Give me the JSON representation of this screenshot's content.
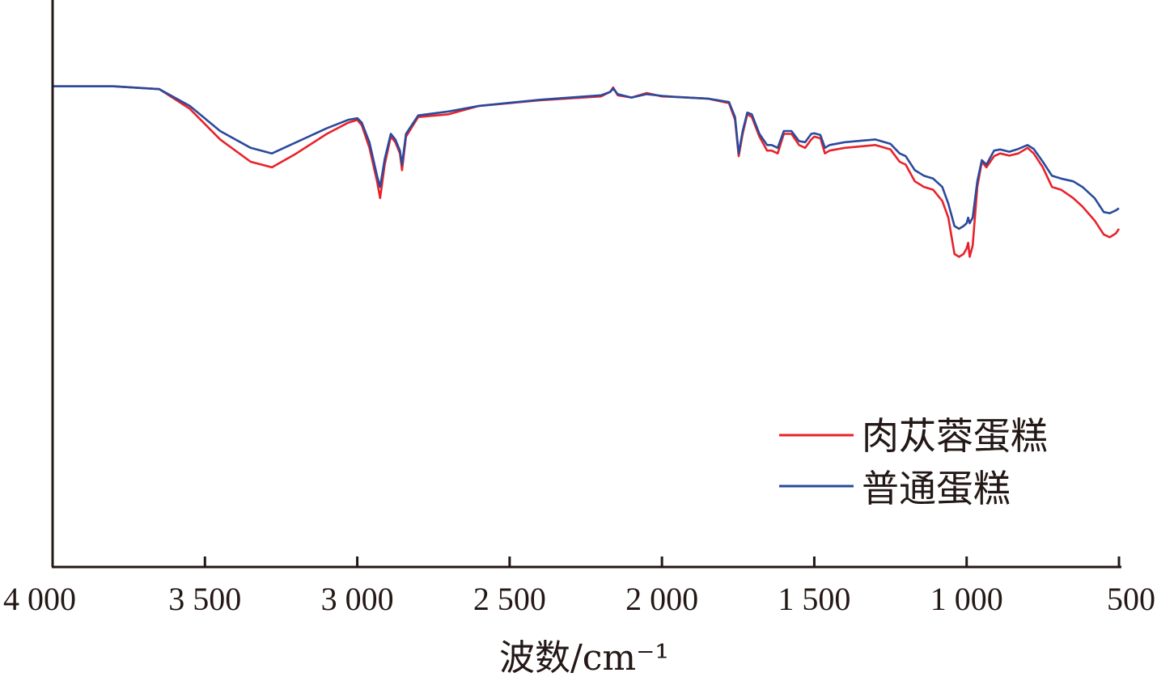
{
  "chart_data": {
    "type": "line",
    "xlabel": "波数/cm⁻¹",
    "ylabel": "",
    "xlim": [
      4000,
      500
    ],
    "ylim": [
      0,
      100
    ],
    "x_reversed": true,
    "y_ticks_shown": false,
    "grid": false,
    "legend_position": "bottom-right",
    "x_ticks": [
      {
        "value": 4000,
        "label": "4 000"
      },
      {
        "value": 3500,
        "label": "3 500"
      },
      {
        "value": 3000,
        "label": "3 000"
      },
      {
        "value": 2500,
        "label": "2 500"
      },
      {
        "value": 2000,
        "label": "2 000"
      },
      {
        "value": 1500,
        "label": "1 500"
      },
      {
        "value": 1000,
        "label": "1 000"
      },
      {
        "value": 500,
        "label": "500"
      }
    ],
    "series": [
      {
        "name": "肉苁蓉蛋糕",
        "color": "#e8222a",
        "points": [
          [
            4000,
            86
          ],
          [
            3800,
            86
          ],
          [
            3650,
            85.5
          ],
          [
            3550,
            82
          ],
          [
            3450,
            76.5
          ],
          [
            3350,
            72.5
          ],
          [
            3280,
            71.5
          ],
          [
            3200,
            74
          ],
          [
            3100,
            77.5
          ],
          [
            3030,
            79.5
          ],
          [
            3000,
            80
          ],
          [
            2985,
            79
          ],
          [
            2960,
            75
          ],
          [
            2935,
            69
          ],
          [
            2925,
            66
          ],
          [
            2910,
            72
          ],
          [
            2890,
            77
          ],
          [
            2875,
            76
          ],
          [
            2860,
            74
          ],
          [
            2853,
            71
          ],
          [
            2840,
            77
          ],
          [
            2800,
            80.5
          ],
          [
            2700,
            81
          ],
          [
            2600,
            82.5
          ],
          [
            2400,
            83.5
          ],
          [
            2200,
            84.2
          ],
          [
            2170,
            85
          ],
          [
            2160,
            85.8
          ],
          [
            2145,
            84.4
          ],
          [
            2100,
            84
          ],
          [
            2050,
            84.8
          ],
          [
            2000,
            84.2
          ],
          [
            1950,
            84.1
          ],
          [
            1850,
            83.8
          ],
          [
            1780,
            83
          ],
          [
            1760,
            80
          ],
          [
            1748,
            73.5
          ],
          [
            1735,
            77.5
          ],
          [
            1720,
            81
          ],
          [
            1705,
            80.5
          ],
          [
            1680,
            77
          ],
          [
            1655,
            74.5
          ],
          [
            1640,
            74.5
          ],
          [
            1620,
            74
          ],
          [
            1600,
            77.5
          ],
          [
            1575,
            77.5
          ],
          [
            1550,
            75.5
          ],
          [
            1530,
            75
          ],
          [
            1510,
            76.5
          ],
          [
            1500,
            77
          ],
          [
            1480,
            76.7
          ],
          [
            1465,
            74
          ],
          [
            1450,
            74.5
          ],
          [
            1400,
            75
          ],
          [
            1300,
            75.5
          ],
          [
            1250,
            74.7
          ],
          [
            1220,
            72.5
          ],
          [
            1200,
            72
          ],
          [
            1170,
            69
          ],
          [
            1140,
            68
          ],
          [
            1110,
            67.5
          ],
          [
            1080,
            65.5
          ],
          [
            1060,
            62.5
          ],
          [
            1040,
            56
          ],
          [
            1025,
            55.5
          ],
          [
            1010,
            56
          ],
          [
            1000,
            57
          ],
          [
            995,
            58
          ],
          [
            990,
            55.5
          ],
          [
            980,
            57.5
          ],
          [
            965,
            68
          ],
          [
            950,
            72.5
          ],
          [
            935,
            71.5
          ],
          [
            910,
            73.5
          ],
          [
            890,
            74
          ],
          [
            860,
            73.6
          ],
          [
            830,
            74
          ],
          [
            800,
            75
          ],
          [
            780,
            74
          ],
          [
            750,
            71.5
          ],
          [
            720,
            68
          ],
          [
            690,
            67.5
          ],
          [
            650,
            66
          ],
          [
            620,
            64.5
          ],
          [
            580,
            62
          ],
          [
            550,
            59.5
          ],
          [
            530,
            59
          ],
          [
            510,
            59.7
          ],
          [
            500,
            60.5
          ]
        ]
      },
      {
        "name": "普通蛋糕",
        "color": "#2a4a9c",
        "points": [
          [
            4000,
            86
          ],
          [
            3800,
            86
          ],
          [
            3650,
            85.5
          ],
          [
            3550,
            82.5
          ],
          [
            3450,
            78
          ],
          [
            3350,
            75
          ],
          [
            3280,
            74
          ],
          [
            3200,
            76
          ],
          [
            3100,
            78.5
          ],
          [
            3030,
            80
          ],
          [
            3000,
            80.3
          ],
          [
            2985,
            79.5
          ],
          [
            2960,
            76
          ],
          [
            2935,
            70
          ],
          [
            2925,
            68
          ],
          [
            2910,
            73
          ],
          [
            2890,
            77.5
          ],
          [
            2875,
            76.5
          ],
          [
            2860,
            74.5
          ],
          [
            2853,
            72
          ],
          [
            2840,
            77.5
          ],
          [
            2800,
            80.8
          ],
          [
            2700,
            81.5
          ],
          [
            2600,
            82.5
          ],
          [
            2400,
            83.6
          ],
          [
            2200,
            84.4
          ],
          [
            2170,
            85
          ],
          [
            2160,
            85.6
          ],
          [
            2145,
            84.6
          ],
          [
            2100,
            84
          ],
          [
            2050,
            84.6
          ],
          [
            2000,
            84.3
          ],
          [
            1950,
            84.1
          ],
          [
            1850,
            83.8
          ],
          [
            1780,
            83.2
          ],
          [
            1760,
            80.5
          ],
          [
            1748,
            74
          ],
          [
            1735,
            78
          ],
          [
            1720,
            81.3
          ],
          [
            1705,
            81
          ],
          [
            1680,
            77.5
          ],
          [
            1655,
            75.5
          ],
          [
            1640,
            75.5
          ],
          [
            1620,
            75
          ],
          [
            1600,
            78
          ],
          [
            1575,
            78
          ],
          [
            1550,
            76.2
          ],
          [
            1530,
            76
          ],
          [
            1510,
            77.5
          ],
          [
            1500,
            77.6
          ],
          [
            1480,
            77.3
          ],
          [
            1465,
            75
          ],
          [
            1450,
            75.5
          ],
          [
            1400,
            76
          ],
          [
            1300,
            76.5
          ],
          [
            1250,
            75.7
          ],
          [
            1220,
            74
          ],
          [
            1200,
            73.5
          ],
          [
            1170,
            71
          ],
          [
            1140,
            70
          ],
          [
            1110,
            69.5
          ],
          [
            1080,
            68
          ],
          [
            1060,
            65
          ],
          [
            1040,
            61
          ],
          [
            1025,
            60.5
          ],
          [
            1010,
            61
          ],
          [
            1000,
            61.5
          ],
          [
            995,
            62.5
          ],
          [
            990,
            61.5
          ],
          [
            980,
            62.5
          ],
          [
            965,
            69
          ],
          [
            950,
            72.8
          ],
          [
            935,
            72
          ],
          [
            910,
            74.5
          ],
          [
            890,
            74.7
          ],
          [
            860,
            74.3
          ],
          [
            830,
            74.8
          ],
          [
            800,
            75.5
          ],
          [
            780,
            74.8
          ],
          [
            750,
            72.5
          ],
          [
            720,
            70
          ],
          [
            690,
            69.5
          ],
          [
            650,
            69
          ],
          [
            620,
            68
          ],
          [
            580,
            66
          ],
          [
            550,
            63.5
          ],
          [
            530,
            63.3
          ],
          [
            510,
            63.8
          ],
          [
            500,
            64.2
          ]
        ]
      }
    ]
  }
}
